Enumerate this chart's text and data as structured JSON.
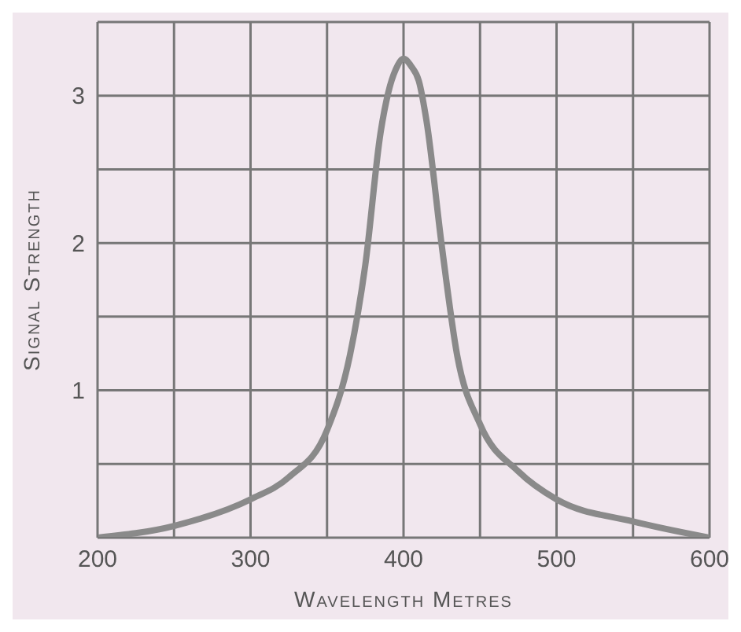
{
  "chart_data": {
    "type": "line",
    "xlabel": "Wavelength Metres",
    "ylabel": "Signal Strength",
    "x": [
      200,
      250,
      300,
      325,
      350,
      365,
      375,
      385,
      390,
      395,
      400,
      405,
      410,
      415,
      425,
      435,
      450,
      475,
      500,
      550,
      600
    ],
    "series": [
      {
        "color": "#8a8a8a",
        "values": [
          0,
          0.08,
          0.26,
          0.41,
          0.73,
          1.24,
          1.85,
          2.75,
          3.02,
          3.18,
          3.25,
          3.2,
          3.1,
          2.83,
          1.98,
          1.24,
          0.77,
          0.45,
          0.26,
          0.11,
          0
        ]
      }
    ],
    "xlim": [
      200,
      600
    ],
    "xticks": [
      200,
      {
        "value": 250,
        "label": null
      },
      300,
      {
        "value": 350,
        "label": null
      },
      400,
      {
        "value": 450,
        "label": null
      },
      500,
      {
        "value": 550,
        "label": null
      },
      600
    ],
    "ylim": [
      0,
      3.5
    ],
    "yticks": [
      {
        "value": 0,
        "label": null
      },
      {
        "value": 0.5,
        "label": null
      },
      1,
      {
        "value": 1.5,
        "label": null
      },
      2,
      {
        "value": 2.5,
        "label": null
      },
      3,
      {
        "value": 3.5,
        "label": null
      }
    ],
    "grid": true,
    "marker": "none",
    "line_style": "solid",
    "legend": false
  }
}
